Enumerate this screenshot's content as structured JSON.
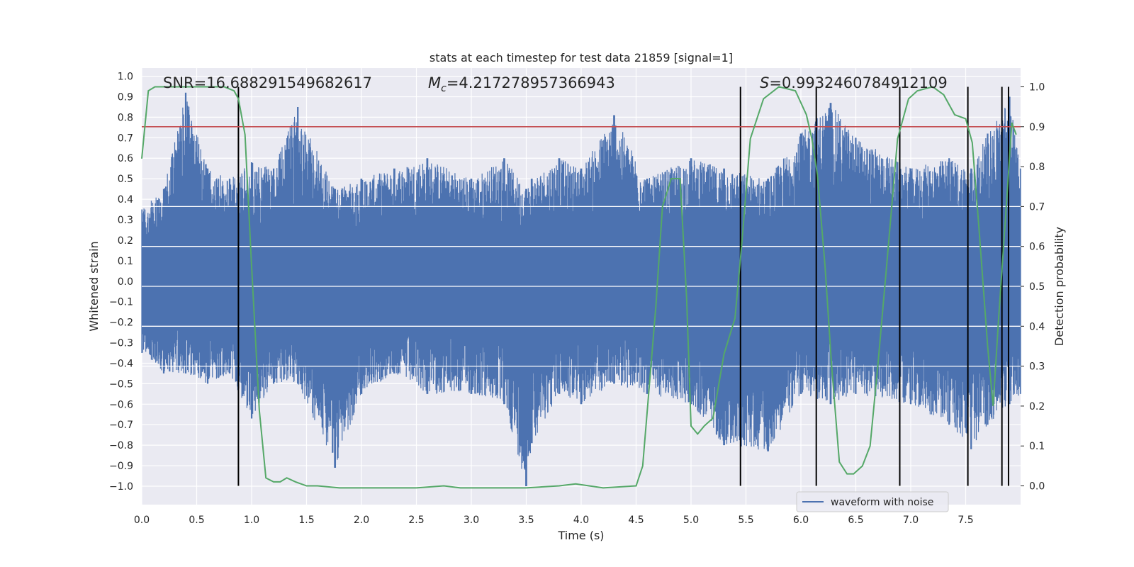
{
  "chart_data": {
    "type": "line",
    "title": "stats at each timestep for test data 21859 [signal=1]",
    "xlabel": "Time (s)",
    "ylabel": "Whitened strain",
    "y2label": "Detection probability",
    "xlim": [
      0.0,
      8.0
    ],
    "ylim": [
      -1.09,
      1.04
    ],
    "y2lim": [
      -0.047,
      1.047
    ],
    "x_ticks": [
      "0.0",
      "0.5",
      "1.0",
      "1.5",
      "2.0",
      "2.5",
      "3.0",
      "3.5",
      "4.0",
      "4.5",
      "5.0",
      "5.5",
      "6.0",
      "6.5",
      "7.0",
      "7.5"
    ],
    "y_ticks": [
      "1.0",
      "0.9",
      "0.8",
      "0.7",
      "0.6",
      "0.5",
      "0.4",
      "0.3",
      "0.2",
      "0.1",
      "0.0",
      "−0.1",
      "−0.2",
      "−0.3",
      "−0.4",
      "−0.5",
      "−0.6",
      "−0.7",
      "−0.8",
      "−0.9",
      "−1.0"
    ],
    "y2_ticks": [
      "1.0",
      "0.9",
      "0.8",
      "0.7",
      "0.6",
      "0.5",
      "0.4",
      "0.3",
      "0.2",
      "0.1",
      "0.0"
    ],
    "grid": true,
    "legend_placement": "bottom-right",
    "annotations": {
      "snr": "SNR=16.688291549682617",
      "mc_symbol": "M",
      "mc_sub": "c",
      "mc_value": "=4.217278957366943",
      "s_symbol": "S",
      "s_value": "=0.9932460784912109"
    },
    "series": [
      {
        "name": "waveform with noise",
        "color": "#4c72b0",
        "axis": "left",
        "envelope_points": [
          [
            0.0,
            0.35,
            -0.35
          ],
          [
            0.2,
            0.45,
            -0.45
          ],
          [
            0.4,
            0.92,
            -0.45
          ],
          [
            0.6,
            0.55,
            -0.5
          ],
          [
            0.8,
            0.5,
            -0.45
          ],
          [
            1.0,
            0.58,
            -0.67
          ],
          [
            1.2,
            0.55,
            -0.5
          ],
          [
            1.42,
            0.85,
            -0.5
          ],
          [
            1.76,
            0.45,
            -0.91
          ],
          [
            2.0,
            0.5,
            -0.55
          ],
          [
            2.3,
            0.55,
            -0.45
          ],
          [
            2.6,
            0.6,
            -0.55
          ],
          [
            3.0,
            0.5,
            -0.55
          ],
          [
            3.3,
            0.6,
            -0.6
          ],
          [
            3.5,
            0.45,
            -1.0
          ],
          [
            3.55,
            0.5,
            -0.79
          ],
          [
            3.8,
            0.6,
            -0.55
          ],
          [
            4.0,
            0.55,
            -0.6
          ],
          [
            4.3,
            0.81,
            -0.5
          ],
          [
            4.6,
            0.5,
            -0.55
          ],
          [
            5.0,
            0.6,
            -0.6
          ],
          [
            5.3,
            0.55,
            -0.8
          ],
          [
            5.7,
            0.5,
            -0.83
          ],
          [
            6.0,
            0.72,
            -0.55
          ],
          [
            6.27,
            0.87,
            -0.6
          ],
          [
            6.5,
            0.7,
            -0.55
          ],
          [
            7.0,
            0.55,
            -0.6
          ],
          [
            7.35,
            0.6,
            -0.7
          ],
          [
            7.55,
            0.55,
            -0.82
          ],
          [
            7.7,
            0.72,
            -0.7
          ],
          [
            7.9,
            0.9,
            -0.6
          ],
          [
            8.0,
            0.55,
            -0.55
          ]
        ]
      },
      {
        "name": "detection probability",
        "color": "#55a868",
        "axis": "right",
        "x": [
          0.0,
          0.06,
          0.12,
          0.2,
          0.4,
          0.6,
          0.75,
          0.84,
          0.88,
          0.94,
          1.0,
          1.07,
          1.13,
          1.2,
          1.26,
          1.32,
          1.4,
          1.5,
          1.6,
          1.8,
          2.0,
          2.5,
          2.75,
          2.9,
          3.2,
          3.5,
          3.8,
          3.95,
          4.2,
          4.5,
          4.56,
          4.62,
          4.68,
          4.74,
          4.82,
          4.9,
          4.96,
          5.0,
          5.06,
          5.12,
          5.2,
          5.3,
          5.4,
          5.46,
          5.54,
          5.66,
          5.8,
          5.95,
          6.05,
          6.1,
          6.15,
          6.22,
          6.28,
          6.35,
          6.42,
          6.48,
          6.56,
          6.63,
          6.7,
          6.78,
          6.88,
          6.98,
          7.06,
          7.2,
          7.3,
          7.4,
          7.5,
          7.56,
          7.62,
          7.7,
          7.75,
          7.8,
          7.86,
          7.92,
          7.96
        ],
        "values": [
          0.82,
          0.99,
          1.0,
          1.0,
          1.0,
          1.0,
          1.0,
          0.99,
          0.97,
          0.88,
          0.55,
          0.19,
          0.02,
          0.01,
          0.01,
          0.02,
          0.01,
          0.0,
          0.0,
          -0.005,
          -0.005,
          -0.005,
          0.0,
          -0.005,
          -0.005,
          -0.005,
          0.0,
          0.005,
          -0.005,
          0.0,
          0.05,
          0.25,
          0.45,
          0.7,
          0.77,
          0.77,
          0.47,
          0.15,
          0.13,
          0.15,
          0.17,
          0.33,
          0.42,
          0.6,
          0.87,
          0.97,
          1.0,
          0.99,
          0.93,
          0.87,
          0.78,
          0.55,
          0.3,
          0.06,
          0.03,
          0.03,
          0.05,
          0.1,
          0.3,
          0.55,
          0.87,
          0.97,
          0.99,
          1.0,
          0.98,
          0.93,
          0.92,
          0.86,
          0.65,
          0.35,
          0.2,
          0.42,
          0.66,
          0.91,
          0.88
        ]
      },
      {
        "name": "threshold",
        "color": "#c44e52",
        "axis": "right",
        "value": 0.9
      }
    ],
    "vertical_lines_x": [
      0.88,
      5.45,
      6.14,
      6.9,
      7.52,
      7.83,
      7.89
    ]
  }
}
